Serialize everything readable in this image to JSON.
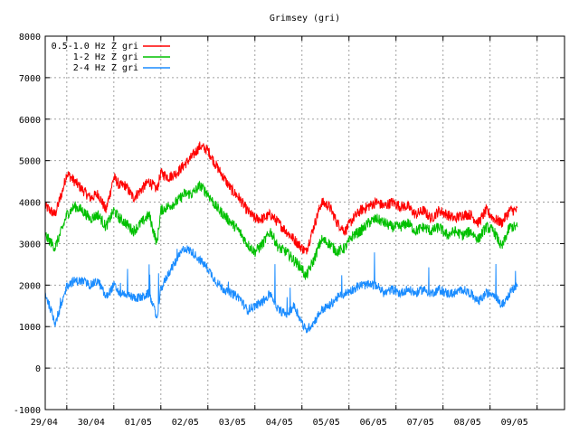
{
  "chart_data": {
    "type": "line",
    "title": "Grimsey (gri)",
    "xlabel": "",
    "ylabel": "",
    "ylim": [
      -1000,
      8000
    ],
    "yticks": [
      -1000,
      0,
      1000,
      2000,
      3000,
      4000,
      5000,
      6000,
      7000,
      8000
    ],
    "xlim": [
      "2024-04-28T13:00",
      "2024-05-09T14:00"
    ],
    "xticks": [
      "29/04",
      "30/04",
      "01/05",
      "02/05",
      "03/05",
      "04/05",
      "05/05",
      "06/05",
      "07/05",
      "08/05",
      "09/05"
    ],
    "grid": true,
    "legend_position": "top-left",
    "series": [
      {
        "name": "0.5-1.0 Hz Z gri",
        "color": "#ff0000",
        "x": [
          "2024-04-28T13:00",
          "2024-04-28T18:00",
          "2024-04-28T22:00",
          "2024-04-29T00:00",
          "2024-04-29T04:00",
          "2024-04-29T08:00",
          "2024-04-29T12:00",
          "2024-04-29T16:00",
          "2024-04-29T20:00",
          "2024-04-30T00:00",
          "2024-04-30T03:00",
          "2024-04-30T06:00",
          "2024-04-30T10:00",
          "2024-04-30T14:00",
          "2024-04-30T18:00",
          "2024-04-30T22:00",
          "2024-05-01T00:00",
          "2024-05-01T04:00",
          "2024-05-01T08:00",
          "2024-05-01T12:00",
          "2024-05-01T16:00",
          "2024-05-01T20:00",
          "2024-05-02T00:00",
          "2024-05-02T04:00",
          "2024-05-02T08:00",
          "2024-05-02T12:00",
          "2024-05-02T16:00",
          "2024-05-02T20:00",
          "2024-05-03T00:00",
          "2024-05-03T04:00",
          "2024-05-03T08:00",
          "2024-05-03T12:00",
          "2024-05-03T16:00",
          "2024-05-03T20:00",
          "2024-05-04T00:00",
          "2024-05-04T02:00",
          "2024-05-04T06:00",
          "2024-05-04T10:00",
          "2024-05-04T14:00",
          "2024-05-04T18:00",
          "2024-05-04T22:00",
          "2024-05-05T02:00",
          "2024-05-05T06:00",
          "2024-05-05T10:00",
          "2024-05-05T14:00",
          "2024-05-05T18:00",
          "2024-05-05T22:00",
          "2024-05-06T02:00",
          "2024-05-06T06:00",
          "2024-05-06T10:00",
          "2024-05-06T14:00",
          "2024-05-06T18:00",
          "2024-05-06T22:00",
          "2024-05-07T02:00",
          "2024-05-07T06:00",
          "2024-05-07T10:00",
          "2024-05-07T14:00",
          "2024-05-07T18:00",
          "2024-05-07T22:00",
          "2024-05-08T02:00",
          "2024-05-08T06:00",
          "2024-05-08T10:00",
          "2024-05-08T14:00"
        ],
        "y": [
          3900,
          3700,
          4300,
          4700,
          4500,
          4300,
          4100,
          4200,
          3800,
          4600,
          4400,
          4400,
          4100,
          4300,
          4500,
          4300,
          4700,
          4600,
          4700,
          4900,
          5100,
          5350,
          5250,
          4900,
          4600,
          4300,
          4100,
          3800,
          3600,
          3600,
          3700,
          3500,
          3300,
          3100,
          2900,
          2800,
          3400,
          4000,
          3900,
          3500,
          3300,
          3600,
          3800,
          3900,
          4000,
          3900,
          4000,
          3900,
          3900,
          3700,
          3800,
          3600,
          3800,
          3700,
          3600,
          3700,
          3700,
          3500,
          3800,
          3600,
          3500,
          3800,
          3800
        ]
      },
      {
        "name": "1-2 Hz Z gri",
        "color": "#00c000",
        "x": [
          "2024-04-28T13:00",
          "2024-04-28T18:00",
          "2024-04-28T22:00",
          "2024-04-29T00:00",
          "2024-04-29T04:00",
          "2024-04-29T08:00",
          "2024-04-29T12:00",
          "2024-04-29T16:00",
          "2024-04-29T20:00",
          "2024-04-30T00:00",
          "2024-04-30T03:00",
          "2024-04-30T06:00",
          "2024-04-30T10:00",
          "2024-04-30T14:00",
          "2024-04-30T18:00",
          "2024-04-30T22:00",
          "2024-05-01T00:00",
          "2024-05-01T04:00",
          "2024-05-01T08:00",
          "2024-05-01T12:00",
          "2024-05-01T16:00",
          "2024-05-01T20:00",
          "2024-05-02T00:00",
          "2024-05-02T04:00",
          "2024-05-02T08:00",
          "2024-05-02T12:00",
          "2024-05-02T16:00",
          "2024-05-02T20:00",
          "2024-05-03T00:00",
          "2024-05-03T04:00",
          "2024-05-03T08:00",
          "2024-05-03T12:00",
          "2024-05-03T16:00",
          "2024-05-03T20:00",
          "2024-05-04T00:00",
          "2024-05-04T02:00",
          "2024-05-04T06:00",
          "2024-05-04T10:00",
          "2024-05-04T14:00",
          "2024-05-04T18:00",
          "2024-05-04T22:00",
          "2024-05-05T02:00",
          "2024-05-05T06:00",
          "2024-05-05T10:00",
          "2024-05-05T14:00",
          "2024-05-05T18:00",
          "2024-05-05T22:00",
          "2024-05-06T02:00",
          "2024-05-06T06:00",
          "2024-05-06T10:00",
          "2024-05-06T14:00",
          "2024-05-06T18:00",
          "2024-05-06T22:00",
          "2024-05-07T02:00",
          "2024-05-07T06:00",
          "2024-05-07T10:00",
          "2024-05-07T14:00",
          "2024-05-07T18:00",
          "2024-05-07T22:00",
          "2024-05-08T02:00",
          "2024-05-08T06:00",
          "2024-05-08T10:00",
          "2024-05-08T14:00"
        ],
        "y": [
          3200,
          2900,
          3400,
          3700,
          3900,
          3800,
          3600,
          3700,
          3400,
          3800,
          3600,
          3500,
          3300,
          3500,
          3700,
          3000,
          3800,
          3900,
          4000,
          4200,
          4200,
          4400,
          4200,
          3900,
          3700,
          3500,
          3300,
          3000,
          2800,
          3000,
          3300,
          2900,
          2800,
          2600,
          2400,
          2200,
          2600,
          3100,
          3000,
          2800,
          2900,
          3200,
          3300,
          3500,
          3600,
          3500,
          3400,
          3400,
          3500,
          3300,
          3400,
          3300,
          3400,
          3200,
          3300,
          3200,
          3300,
          3100,
          3400,
          3300,
          2900,
          3400,
          3400
        ]
      },
      {
        "name": "2-4 Hz Z gri",
        "color": "#1a8cff",
        "x": [
          "2024-04-28T13:00",
          "2024-04-28T18:00",
          "2024-04-28T22:00",
          "2024-04-29T00:00",
          "2024-04-29T04:00",
          "2024-04-29T08:00",
          "2024-04-29T12:00",
          "2024-04-29T16:00",
          "2024-04-29T20:00",
          "2024-04-30T00:00",
          "2024-04-30T03:00",
          "2024-04-30T06:00",
          "2024-04-30T10:00",
          "2024-04-30T14:00",
          "2024-04-30T18:00",
          "2024-04-30T22:00",
          "2024-05-01T00:00",
          "2024-05-01T04:00",
          "2024-05-01T08:00",
          "2024-05-01T12:00",
          "2024-05-01T16:00",
          "2024-05-01T20:00",
          "2024-05-02T00:00",
          "2024-05-02T04:00",
          "2024-05-02T08:00",
          "2024-05-02T12:00",
          "2024-05-02T16:00",
          "2024-05-02T20:00",
          "2024-05-03T00:00",
          "2024-05-03T04:00",
          "2024-05-03T08:00",
          "2024-05-03T12:00",
          "2024-05-03T16:00",
          "2024-05-03T20:00",
          "2024-05-04T00:00",
          "2024-05-04T02:00",
          "2024-05-04T06:00",
          "2024-05-04T10:00",
          "2024-05-04T14:00",
          "2024-05-04T18:00",
          "2024-05-04T22:00",
          "2024-05-05T02:00",
          "2024-05-05T06:00",
          "2024-05-05T10:00",
          "2024-05-05T14:00",
          "2024-05-05T18:00",
          "2024-05-05T22:00",
          "2024-05-06T02:00",
          "2024-05-06T06:00",
          "2024-05-06T10:00",
          "2024-05-06T14:00",
          "2024-05-06T18:00",
          "2024-05-06T22:00",
          "2024-05-07T02:00",
          "2024-05-07T06:00",
          "2024-05-07T10:00",
          "2024-05-07T14:00",
          "2024-05-07T18:00",
          "2024-05-07T22:00",
          "2024-05-08T02:00",
          "2024-05-08T06:00",
          "2024-05-08T10:00",
          "2024-05-08T14:00"
        ],
        "y": [
          1800,
          1100,
          1600,
          2000,
          2100,
          2100,
          2000,
          2100,
          1700,
          2000,
          1800,
          1800,
          1700,
          1700,
          1800,
          1200,
          1900,
          2300,
          2600,
          2900,
          2800,
          2600,
          2400,
          2100,
          1900,
          1800,
          1700,
          1400,
          1500,
          1600,
          1800,
          1400,
          1300,
          1500,
          1100,
          900,
          1100,
          1400,
          1500,
          1700,
          1800,
          1900,
          2000,
          2000,
          2000,
          1800,
          1900,
          1800,
          1900,
          1800,
          1900,
          1800,
          1900,
          1800,
          1800,
          1900,
          1800,
          1600,
          1800,
          1800,
          1500,
          1800,
          2000
        ]
      }
    ]
  }
}
